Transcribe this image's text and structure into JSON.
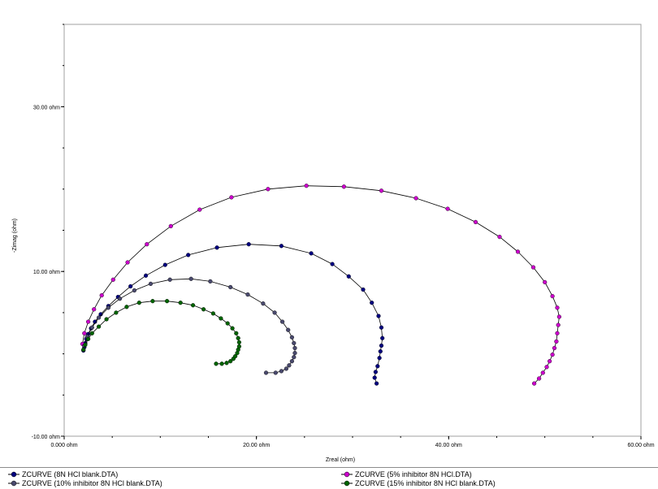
{
  "chart_data": {
    "type": "scatter",
    "title": "",
    "xlabel": "Zreal (ohm)",
    "ylabel": "-Zimag (ohm)",
    "xlim": [
      0,
      60
    ],
    "ylim": [
      -10,
      40
    ],
    "x_ticks": [
      {
        "value": 0,
        "label": "0.000 ohm"
      },
      {
        "value": 20,
        "label": "20.00 ohm"
      },
      {
        "value": 40,
        "label": "40.00 ohm"
      },
      {
        "value": 60,
        "label": "60.00 ohm"
      }
    ],
    "y_ticks": [
      {
        "value": -10,
        "label": "-10.00 ohm"
      },
      {
        "value": 10,
        "label": "10.00 ohm"
      },
      {
        "value": 30,
        "label": "30.00 ohm"
      }
    ],
    "grid": false,
    "legend_position": "bottom",
    "series": [
      {
        "name": "ZCURVE (8N HCl blank.DTA)",
        "color": "#00007f",
        "x": [
          32.5,
          32.3,
          32.4,
          32.6,
          32.8,
          32.9,
          33.0,
          33.1,
          33.0,
          32.7,
          32.0,
          31.1,
          29.6,
          27.9,
          25.7,
          22.6,
          19.2,
          15.9,
          12.9,
          10.5,
          8.5,
          6.9,
          5.6,
          4.6,
          3.8,
          3.2,
          2.8,
          2.5,
          2.3,
          2.2,
          2.1,
          2.0
        ],
        "y": [
          -3.6,
          -2.9,
          -2.2,
          -1.5,
          -0.5,
          0.3,
          1.0,
          1.9,
          3.2,
          4.6,
          6.2,
          7.8,
          9.4,
          10.9,
          12.2,
          13.1,
          13.3,
          12.9,
          12.0,
          10.8,
          9.5,
          8.2,
          6.9,
          5.8,
          4.8,
          3.9,
          3.1,
          2.4,
          1.8,
          1.3,
          0.8,
          0.4
        ]
      },
      {
        "name": "ZCURVE (5% inhibitor 8N HCl.DTA)",
        "color": "#cc00cc",
        "x": [
          48.9,
          49.4,
          49.8,
          50.2,
          50.5,
          50.8,
          51.0,
          51.2,
          51.3,
          51.4,
          51.5,
          51.3,
          50.8,
          50.0,
          48.8,
          47.2,
          45.3,
          42.8,
          39.9,
          36.6,
          33.0,
          29.1,
          25.2,
          21.2,
          17.4,
          14.1,
          11.1,
          8.6,
          6.6,
          5.1,
          3.9,
          3.1,
          2.5,
          2.1,
          1.9
        ],
        "y": [
          -3.6,
          -3.0,
          -2.3,
          -1.6,
          -0.9,
          -0.1,
          0.7,
          1.5,
          2.5,
          3.5,
          4.5,
          5.6,
          7.0,
          8.7,
          10.5,
          12.4,
          14.2,
          16.0,
          17.6,
          18.9,
          19.8,
          20.3,
          20.4,
          20.0,
          19.0,
          17.5,
          15.5,
          13.3,
          11.1,
          9.0,
          7.1,
          5.4,
          3.9,
          2.5,
          1.2
        ]
      },
      {
        "name": "ZCURVE (10% inhibitor 8N HCl blank.DTA)",
        "color": "#4a4a6e",
        "x": [
          21.0,
          22.0,
          22.6,
          23.1,
          23.4,
          23.7,
          23.9,
          24.0,
          24.0,
          23.9,
          23.7,
          23.3,
          22.7,
          21.9,
          20.7,
          19.1,
          17.3,
          15.2,
          13.2,
          11.0,
          9.0,
          7.3,
          5.8,
          4.6,
          3.6,
          2.9,
          2.4,
          2.1
        ],
        "y": [
          -2.3,
          -2.3,
          -2.1,
          -1.8,
          -1.4,
          -0.9,
          -0.4,
          0.1,
          0.7,
          1.3,
          2.0,
          2.9,
          3.9,
          5.0,
          6.1,
          7.2,
          8.1,
          8.8,
          9.1,
          9.0,
          8.5,
          7.7,
          6.7,
          5.6,
          4.4,
          3.2,
          2.1,
          1.0
        ]
      },
      {
        "name": "ZCURVE (15% inhibitor 8N HCl blank.DTA)",
        "color": "#006400",
        "x": [
          15.8,
          16.4,
          16.9,
          17.3,
          17.6,
          17.8,
          18.0,
          18.1,
          18.2,
          18.2,
          18.1,
          17.9,
          17.5,
          17.0,
          16.3,
          15.5,
          14.5,
          13.4,
          12.1,
          10.7,
          9.2,
          7.8,
          6.5,
          5.4,
          4.4,
          3.6,
          2.9,
          2.5,
          2.2,
          2.0
        ],
        "y": [
          -1.2,
          -1.2,
          -1.1,
          -0.9,
          -0.6,
          -0.3,
          0.1,
          0.5,
          0.9,
          1.4,
          1.9,
          2.5,
          3.1,
          3.7,
          4.3,
          4.9,
          5.4,
          5.9,
          6.2,
          6.4,
          6.4,
          6.2,
          5.7,
          5.0,
          4.2,
          3.3,
          2.5,
          1.8,
          1.1,
          0.5
        ]
      }
    ]
  },
  "legend": {
    "items": [
      {
        "label": "ZCURVE (8N HCl blank.DTA)",
        "color": "#00007f"
      },
      {
        "label": "ZCURVE (5% inhibitor 8N HCl.DTA)",
        "color": "#cc00cc"
      },
      {
        "label": "ZCURVE (10% inhibitor 8N HCl blank.DTA)",
        "color": "#4a4a6e"
      },
      {
        "label": "ZCURVE (15% inhibitor 8N HCl blank.DTA)",
        "color": "#006400"
      }
    ]
  }
}
